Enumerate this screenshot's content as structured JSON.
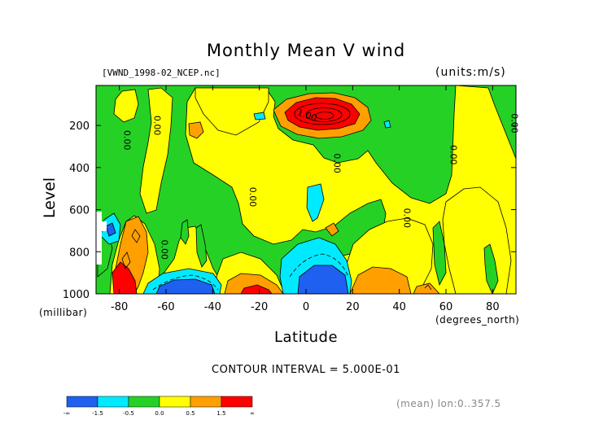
{
  "chart_data": {
    "type": "heatmap",
    "title": "Monthly Mean V wind",
    "file_label": "[VWND_1998-02_NCEP.nc]",
    "units_label": "(units:m/s)",
    "ylabel": "Level",
    "yunit": "(millibar)",
    "xlabel": "Latitude",
    "xunit": "(degrees_north)",
    "x_ticks": [
      -80,
      -60,
      -40,
      -20,
      0,
      20,
      40,
      60,
      80
    ],
    "x_tick_labels": [
      "-80",
      "-60",
      "-40",
      "-20",
      "0",
      "20",
      "40",
      "60",
      "80"
    ],
    "xlim": [
      -90,
      90
    ],
    "y_ticks": [
      200,
      400,
      600,
      800,
      1000
    ],
    "y_tick_labels": [
      "200",
      "400",
      "600",
      "800",
      "1000"
    ],
    "ylim": [
      1000,
      10
    ],
    "contour_interval_text": "CONTOUR INTERVAL = 5.000E-01",
    "contour_interval": 0.5,
    "contour_labels": [
      {
        "text": "0.00",
        "lat": -78,
        "lev": 270
      },
      {
        "text": "0.00",
        "lat": -65,
        "lev": 200
      },
      {
        "text": "0.00",
        "lat": -24,
        "lev": 540
      },
      {
        "text": "0.00",
        "lat": -62,
        "lev": 790
      },
      {
        "text": "0.00",
        "lat": 12,
        "lev": 380
      },
      {
        "text": "1.00",
        "lat": 0,
        "lev": 165
      },
      {
        "text": "0.00",
        "lat": 42,
        "lev": 640
      },
      {
        "text": "0.00",
        "lat": 62,
        "lev": 340
      },
      {
        "text": "0.00",
        "lat": 88,
        "lev": 190
      }
    ],
    "colorbar": {
      "levels": [
        "-∞",
        "-1.5",
        "-0.5",
        "0.0",
        "0.5",
        "1.5",
        "∞"
      ],
      "colors": [
        "#1f60f0",
        "#00eaff",
        "#26d126",
        "#ffff00",
        "#ff9f00",
        "#ff0000"
      ]
    },
    "footer_text": "(mean) lon:0..357.5",
    "colors": {
      "blue": "#1f60f0",
      "cyan": "#00eaff",
      "green": "#26d126",
      "yellow": "#ffff00",
      "orange": "#ff9f00",
      "red": "#ff0000"
    }
  }
}
